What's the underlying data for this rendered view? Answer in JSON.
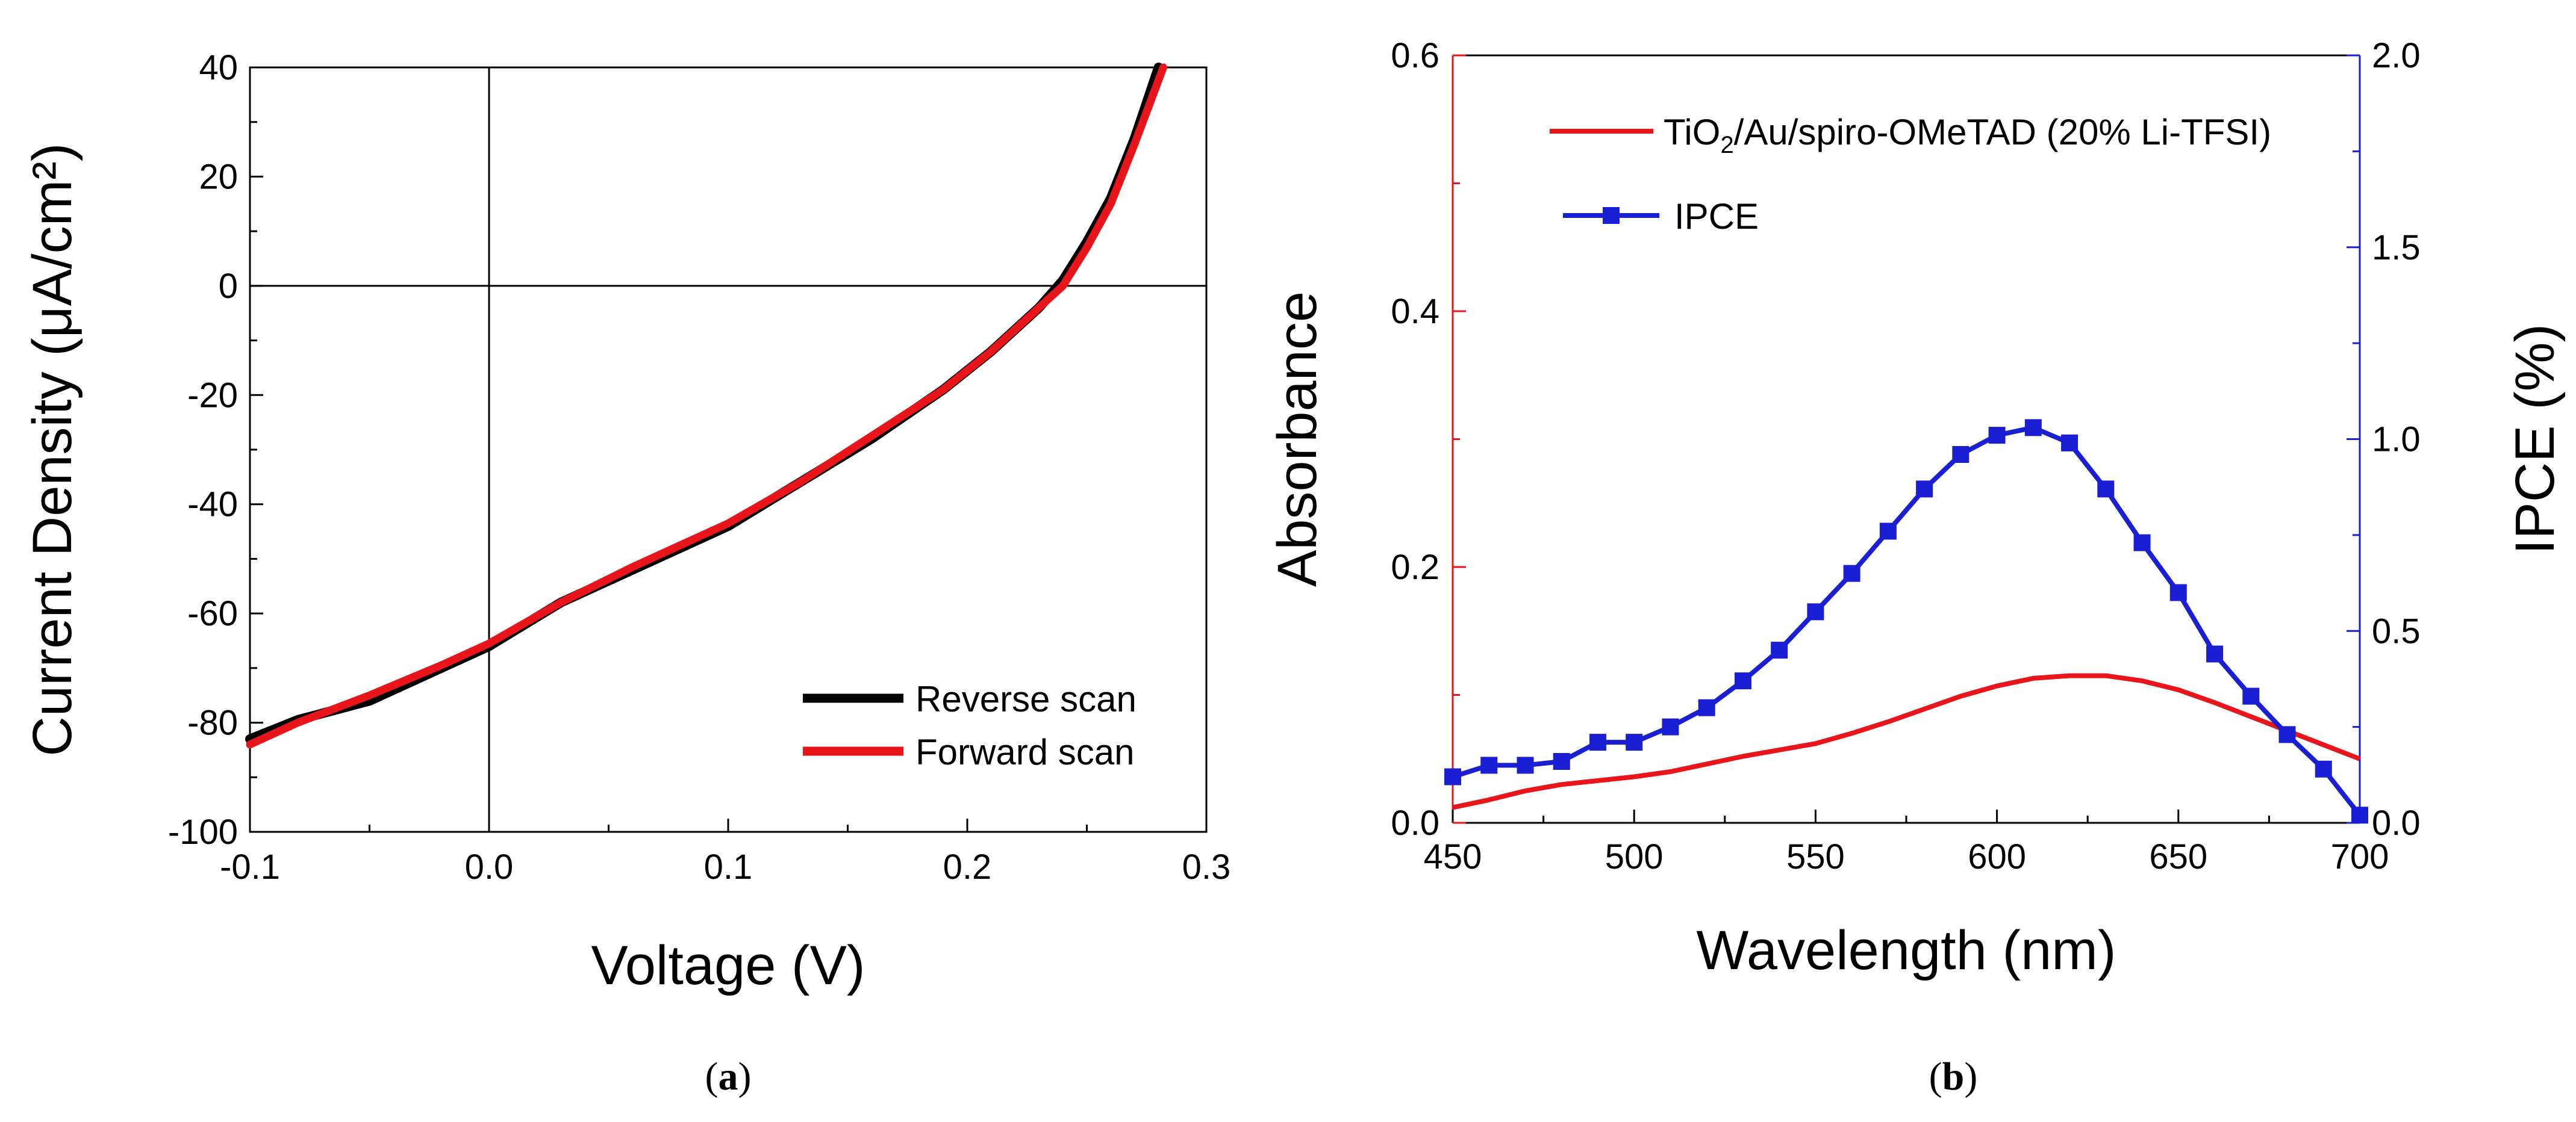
{
  "chart_data": [
    {
      "id": "a",
      "type": "line",
      "caption_letter": "a",
      "xlabel": "Voltage (V)",
      "ylabel": "Current Density (μA/cm²)",
      "xlim": [
        -0.1,
        0.3
      ],
      "ylim": [
        -100,
        40
      ],
      "xticks": [
        -0.1,
        0.0,
        0.1,
        0.2,
        0.3
      ],
      "xtick_labels": [
        "-0.1",
        "0.0",
        "0.1",
        "0.2",
        "0.3"
      ],
      "yticks": [
        -100,
        -80,
        -60,
        -40,
        -20,
        0,
        20,
        40
      ],
      "ytick_labels": [
        "-100",
        "-80",
        "-60",
        "-40",
        "-20",
        "0",
        "20",
        "40"
      ],
      "zero_lines": true,
      "legend_position": "bottom-right",
      "series": [
        {
          "name": "Reverse scan",
          "color": "#000000",
          "x": [
            -0.1,
            -0.08,
            -0.05,
            -0.02,
            0.0,
            0.03,
            0.06,
            0.1,
            0.13,
            0.16,
            0.19,
            0.21,
            0.23,
            0.24,
            0.25,
            0.26,
            0.27,
            0.28
          ],
          "y": [
            -83,
            -79.5,
            -76,
            -70,
            -66,
            -58,
            -52,
            -44,
            -36,
            -28,
            -19,
            -12,
            -4,
            1,
            8,
            16,
            27,
            40
          ]
        },
        {
          "name": "Forward scan",
          "color": "#e8151b",
          "x": [
            -0.1,
            -0.08,
            -0.05,
            -0.02,
            0.0,
            0.03,
            0.06,
            0.1,
            0.13,
            0.16,
            0.19,
            0.21,
            0.23,
            0.24,
            0.25,
            0.26,
            0.27,
            0.282
          ],
          "y": [
            -84,
            -80,
            -75,
            -69.5,
            -65.5,
            -58,
            -51.5,
            -43.5,
            -36,
            -27.5,
            -19,
            -12,
            -4,
            0,
            7,
            15,
            26,
            40
          ]
        }
      ]
    },
    {
      "id": "b",
      "type": "line",
      "caption_letter": "b",
      "xlabel": "Wavelength (nm)",
      "ylabel_left": "Absorbance",
      "ylabel_right": "IPCE (%)",
      "xlim": [
        450,
        700
      ],
      "ylim_left": [
        0.0,
        0.6
      ],
      "ylim_right": [
        0.0,
        2.0
      ],
      "xticks": [
        450,
        500,
        550,
        600,
        650,
        700
      ],
      "xtick_labels": [
        "450",
        "500",
        "550",
        "600",
        "650",
        "700"
      ],
      "yticks_left": [
        0.0,
        0.2,
        0.4,
        0.6
      ],
      "ytick_labels_left": [
        "0.0",
        "0.2",
        "0.4",
        "0.6"
      ],
      "yticks_right": [
        0.0,
        0.5,
        1.0,
        1.5,
        2.0
      ],
      "ytick_labels_right": [
        "0.0",
        "0.5",
        "1.0",
        "1.5",
        "2.0"
      ],
      "left_color": "#e8151b",
      "right_color": "#1a1fd4",
      "legend_position": "top-right",
      "legend_absorbance_prefix": "TiO",
      "legend_absorbance_subscript": "2",
      "legend_absorbance_suffix": "/Au/spiro-OMeTAD (20% Li-TFSI)",
      "series": [
        {
          "name": "TiO2/Au/spiro-OMeTAD (20% Li-TFSI)",
          "axis": "left",
          "color": "#e8151b",
          "x": [
            450,
            460,
            470,
            480,
            490,
            500,
            510,
            520,
            530,
            540,
            550,
            560,
            570,
            580,
            590,
            600,
            610,
            620,
            630,
            640,
            650,
            660,
            670,
            680,
            690,
            700
          ],
          "y": [
            0.012,
            0.018,
            0.025,
            0.03,
            0.033,
            0.036,
            0.04,
            0.046,
            0.052,
            0.057,
            0.062,
            0.07,
            0.079,
            0.089,
            0.099,
            0.107,
            0.113,
            0.115,
            0.115,
            0.111,
            0.104,
            0.094,
            0.083,
            0.072,
            0.061,
            0.05
          ]
        },
        {
          "name": "IPCE",
          "axis": "right",
          "color": "#1a1fd4",
          "x": [
            450,
            460,
            470,
            480,
            490,
            500,
            510,
            520,
            530,
            540,
            550,
            560,
            570,
            580,
            590,
            600,
            610,
            620,
            630,
            640,
            650,
            660,
            670,
            680,
            690,
            700
          ],
          "y": [
            0.12,
            0.15,
            0.15,
            0.16,
            0.21,
            0.21,
            0.25,
            0.3,
            0.37,
            0.45,
            0.55,
            0.65,
            0.76,
            0.87,
            0.96,
            1.01,
            1.03,
            0.99,
            0.87,
            0.73,
            0.6,
            0.44,
            0.33,
            0.23,
            0.14,
            0.02
          ]
        }
      ]
    }
  ]
}
